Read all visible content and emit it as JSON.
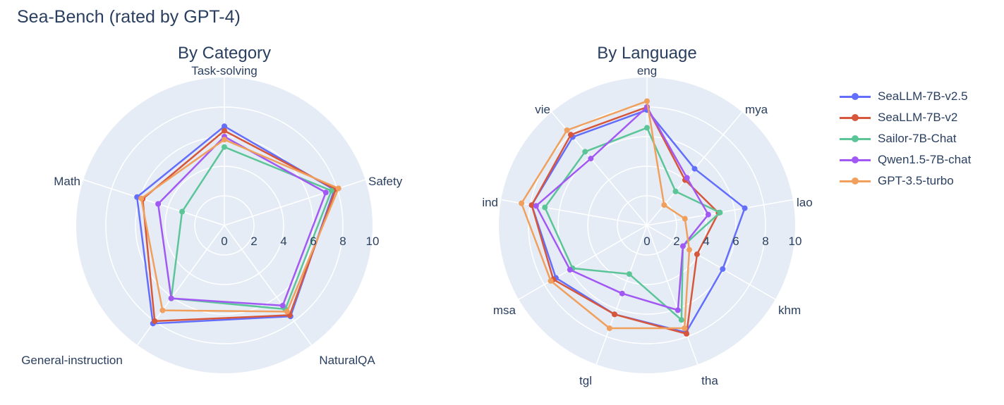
{
  "title": "Sea-Bench (rated by GPT-4)",
  "colors": {
    "SeaLLM-7B-v2.5": "#636efa",
    "SeaLLM-7B-v2": "#d6573b",
    "Sailor-7B-Chat": "#5cc597",
    "Qwen1.5-7B-chat": "#a259f4",
    "GPT-3.5-turbo": "#f0a05c"
  },
  "legend": [
    "SeaLLM-7B-v2.5",
    "SeaLLM-7B-v2",
    "Sailor-7B-Chat",
    "Qwen1.5-7B-chat",
    "GPT-3.5-turbo"
  ],
  "chart_data": [
    {
      "type": "radar",
      "title": "By Category",
      "categories": [
        "Task-solving",
        "Safety",
        "NaturalQA",
        "General-instruction",
        "Math"
      ],
      "radial_range": [
        0,
        10
      ],
      "radial_ticks": [
        "0",
        "2",
        "4",
        "6",
        "8",
        "10"
      ],
      "series": [
        {
          "name": "SeaLLM-7B-v2.5",
          "values": [
            6.7,
            7.8,
            7.6,
            8.2,
            6.2
          ]
        },
        {
          "name": "SeaLLM-7B-v2",
          "values": [
            6.4,
            7.9,
            7.5,
            8.0,
            5.8
          ]
        },
        {
          "name": "Sailor-7B-Chat",
          "values": [
            5.3,
            7.6,
            7.0,
            6.1,
            3.0
          ]
        },
        {
          "name": "Qwen1.5-7B-chat",
          "values": [
            6.0,
            7.2,
            6.7,
            6.1,
            4.7
          ]
        },
        {
          "name": "GPT-3.5-turbo",
          "values": [
            5.8,
            8.1,
            7.2,
            7.1,
            5.9
          ]
        }
      ]
    },
    {
      "type": "radar",
      "title": "By Language",
      "categories": [
        "eng",
        "mya",
        "lao",
        "khm",
        "tha",
        "tgl",
        "msa",
        "ind",
        "vie"
      ],
      "radial_range": [
        0,
        10
      ],
      "radial_ticks": [
        "0",
        "2",
        "4",
        "6",
        "8",
        "10"
      ],
      "series": [
        {
          "name": "SeaLLM-7B-v2.5",
          "values": [
            7.8,
            5.0,
            6.7,
            5.9,
            7.7,
            6.4,
            7.1,
            7.9,
            7.8
          ]
        },
        {
          "name": "SeaLLM-7B-v2",
          "values": [
            8.0,
            4.0,
            4.9,
            3.9,
            7.8,
            6.4,
            7.3,
            7.9,
            8.0
          ]
        },
        {
          "name": "Sailor-7B-Chat",
          "values": [
            6.6,
            3.0,
            5.0,
            2.8,
            6.8,
            3.5,
            5.8,
            7.0,
            6.5
          ]
        },
        {
          "name": "Qwen1.5-7B-chat",
          "values": [
            8.0,
            4.2,
            4.2,
            2.8,
            6.1,
            4.9,
            6.0,
            7.6,
            5.9
          ]
        },
        {
          "name": "GPT-3.5-turbo",
          "values": [
            8.4,
            1.8,
            2.6,
            3.3,
            7.4,
            7.4,
            7.5,
            8.6,
            8.4
          ]
        }
      ]
    }
  ]
}
